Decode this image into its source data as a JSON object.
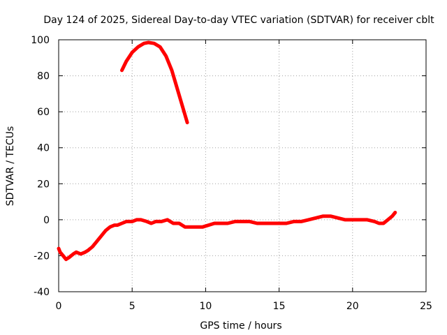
{
  "chart_data": {
    "type": "line",
    "title": "Day 124 of 2025, Sidereal Day-to-day VTEC variation (SDTVAR) for receiver cblt",
    "xlabel": "GPS time / hours",
    "ylabel": "SDTVAR / TECUs",
    "xlim": [
      0,
      25
    ],
    "ylim": [
      -40,
      100
    ],
    "xticks": [
      0,
      5,
      10,
      15,
      20,
      25
    ],
    "yticks": [
      -40,
      -20,
      0,
      20,
      40,
      60,
      80,
      100
    ],
    "grid": true,
    "legend": "none",
    "color": "#ff0000",
    "series": [
      {
        "x": [
          4.3,
          4.6,
          5.0,
          5.4,
          5.8,
          6.1,
          6.5,
          6.9,
          7.3,
          7.7,
          8.1,
          8.5,
          8.75
        ],
        "y": [
          83,
          88,
          93,
          96,
          98,
          98.5,
          98,
          96,
          91,
          83,
          72,
          61,
          54
        ]
      },
      {
        "x": [
          0.0,
          0.1,
          0.3,
          0.5,
          0.7,
          1.0,
          1.2,
          1.5,
          1.8,
          2.0,
          2.3,
          2.6,
          2.9,
          3.2,
          3.5,
          3.8,
          4.0,
          4.3,
          4.6,
          5.0,
          5.3,
          5.6,
          6.0,
          6.3,
          6.6,
          7.0,
          7.4,
          7.8,
          8.2,
          8.6,
          9.0,
          9.4,
          9.8,
          10.2,
          10.6,
          11.0,
          11.5,
          12.0,
          12.5,
          13.0,
          13.5,
          14.0,
          14.5,
          15.0,
          15.5,
          16.0,
          16.5,
          17.0,
          17.5,
          18.0,
          18.5,
          19.0,
          19.5,
          20.0,
          20.5,
          21.0,
          21.5,
          21.8,
          22.1,
          22.4,
          22.7,
          22.9
        ],
        "y": [
          -16,
          -18,
          -20,
          -22,
          -21,
          -19,
          -18,
          -19,
          -18,
          -17,
          -15,
          -12,
          -9,
          -6,
          -4,
          -3,
          -3,
          -2,
          -1,
          -1,
          0,
          0,
          -1,
          -2,
          -1,
          -1,
          0,
          -2,
          -2,
          -4,
          -4,
          -4,
          -4,
          -3,
          -2,
          -2,
          -2,
          -1,
          -1,
          -1,
          -2,
          -2,
          -2,
          -2,
          -2,
          -1,
          -1,
          0,
          1,
          2,
          2,
          1,
          0,
          0,
          0,
          0,
          -1,
          -2,
          -2,
          0,
          2,
          4
        ]
      }
    ]
  }
}
